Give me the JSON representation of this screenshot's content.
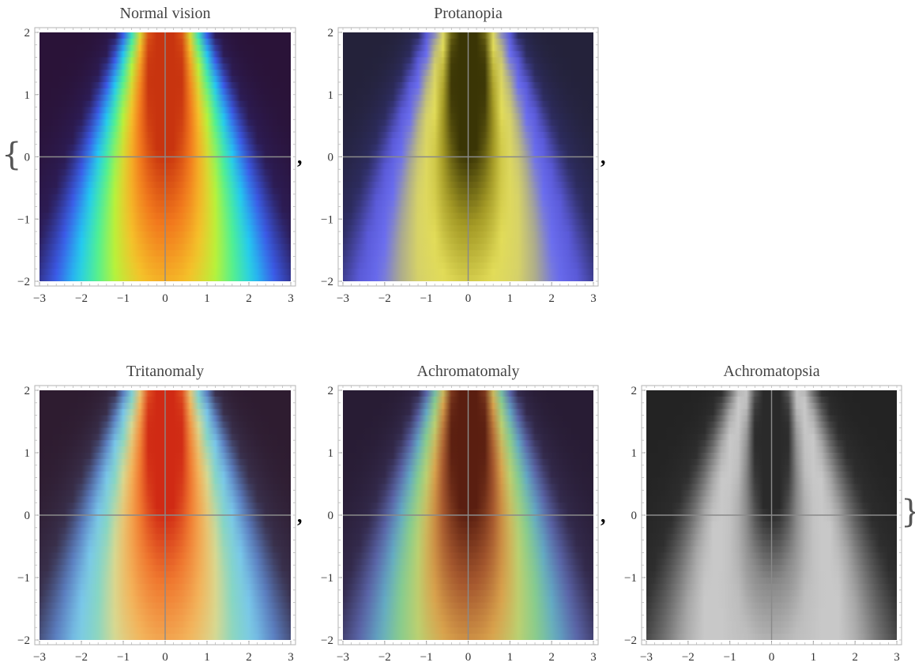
{
  "outer_brackets": {
    "open": "{",
    "close": "}"
  },
  "separators": [
    ",",
    ",",
    ",",
    ","
  ],
  "chart_data": [
    {
      "type": "heatmap",
      "title": "Normal vision",
      "colormap": [
        "#2a1338",
        "#2c1c55",
        "#3b5ae8",
        "#23c9f2",
        "#4ef095",
        "#b8f23a",
        "#f5c12a",
        "#f27a1d",
        "#c8340f"
      ],
      "xlim": [
        -3,
        3
      ],
      "ylim": [
        -2,
        2
      ],
      "xticks": [
        "−3",
        "−2",
        "−1",
        "0",
        "1",
        "2",
        "3"
      ],
      "yticks": [
        "2",
        "1",
        "0",
        "−1",
        "−2"
      ],
      "axis_lines": true
    },
    {
      "type": "heatmap",
      "title": "Protanopia",
      "colormap": [
        "#24223a",
        "#2d2c60",
        "#5a5ad8",
        "#6b6ef0",
        "#a9a98f",
        "#d6d268",
        "#e2dc58",
        "#a49a25",
        "#3a3505"
      ],
      "xlim": [
        -3,
        3
      ],
      "ylim": [
        -2,
        2
      ],
      "xticks": [
        "−3",
        "−2",
        "−1",
        "0",
        "1",
        "2",
        "3"
      ],
      "yticks": [
        "2",
        "1",
        "0",
        "−1",
        "−2"
      ],
      "axis_lines": true
    },
    {
      "type": "heatmap",
      "title": "Tritanomaly",
      "colormap": [
        "#2e1c30",
        "#39304c",
        "#5b7ec0",
        "#79c7ea",
        "#86d6c4",
        "#d8d890",
        "#f3b35a",
        "#f07a30",
        "#d02a14"
      ],
      "xlim": [
        -3,
        3
      ],
      "ylim": [
        -2,
        2
      ],
      "xticks": [
        "−3",
        "−2",
        "−1",
        "0",
        "1",
        "2",
        "3"
      ],
      "yticks": [
        "2",
        "1",
        "0",
        "−1",
        "−2"
      ],
      "axis_lines": true
    },
    {
      "type": "heatmap",
      "title": "Achromatomaly",
      "colormap": [
        "#281c34",
        "#332a4c",
        "#5a64a8",
        "#63aac4",
        "#86cc8e",
        "#bcd070",
        "#d9a24c",
        "#a6582e",
        "#5a1e10"
      ],
      "xlim": [
        -3,
        3
      ],
      "ylim": [
        -2,
        2
      ],
      "xticks": [
        "−3",
        "−2",
        "−1",
        "0",
        "1",
        "2",
        "3"
      ],
      "yticks": [
        "2",
        "1",
        "0",
        "−1",
        "−2"
      ],
      "axis_lines": true
    },
    {
      "type": "heatmap",
      "title": "Achromatopsia",
      "colormap": [
        "#232323",
        "#2e2e2e",
        "#6a6a6a",
        "#a6a6a6",
        "#c8c8c8",
        "#c8c8c8",
        "#bdbdbd",
        "#8a8a8a",
        "#2a2a2a"
      ],
      "xlim": [
        -3,
        3
      ],
      "ylim": [
        -2,
        2
      ],
      "xticks": [
        "−3",
        "−2",
        "−1",
        "0",
        "1",
        "2",
        "3"
      ],
      "yticks": [
        "2",
        "1",
        "0",
        "−1",
        "−2"
      ],
      "axis_lines": true
    }
  ]
}
